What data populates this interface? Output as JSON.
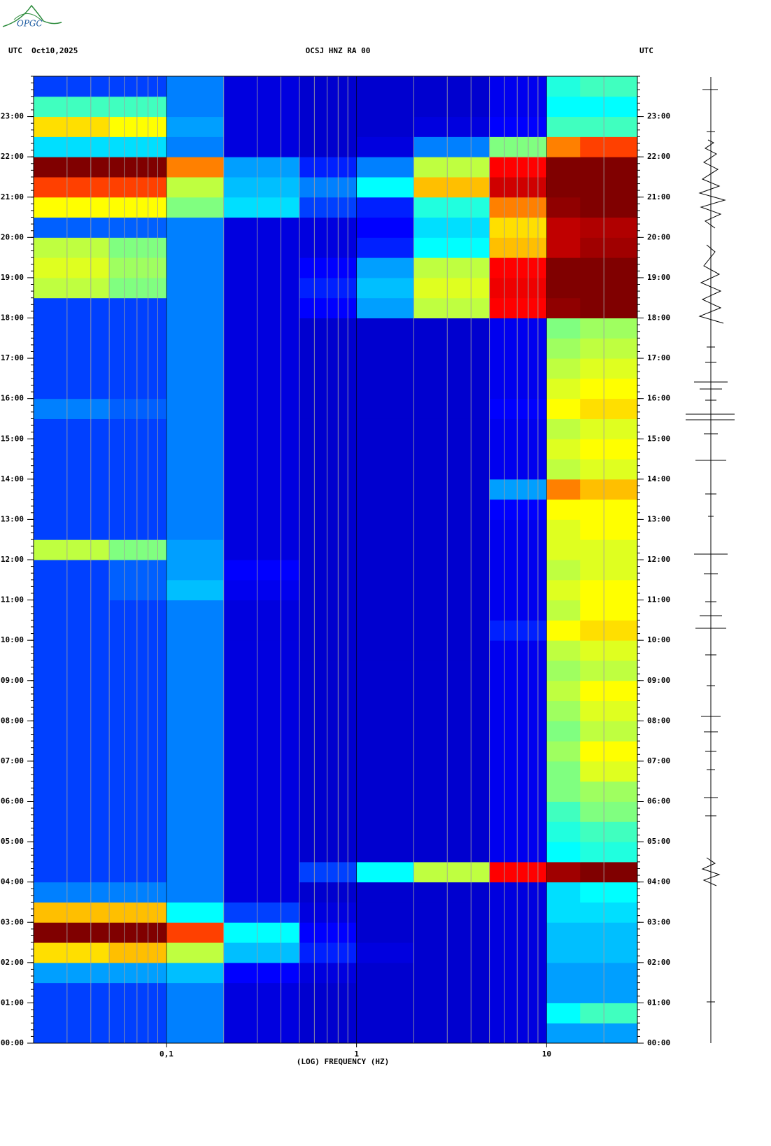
{
  "chart_data": {
    "type": "spectrogram",
    "logo": "OPGC",
    "header_left": "UTC  Oct10,2025",
    "title": "OCSJ HNZ RA 00",
    "header_right": "UTC",
    "xlabel": "(LOG) FREQUENCY (HZ)",
    "xscale": "log",
    "xlim": [
      0.02,
      30
    ],
    "xticks": [
      {
        "value": 0.1,
        "label": "0,1"
      },
      1,
      10
    ],
    "xgrid": [
      0.03,
      0.04,
      0.05,
      0.06,
      0.07,
      0.08,
      0.09,
      0.1,
      0.2,
      0.3,
      0.4,
      0.5,
      0.6,
      0.7,
      0.8,
      0.9,
      1,
      2,
      3,
      4,
      5,
      6,
      7,
      8,
      9,
      10,
      20
    ],
    "ylim": [
      0,
      24
    ],
    "yticks": [
      {
        "value": 0,
        "label": "00:00"
      },
      {
        "value": 1,
        "label": "01:00"
      },
      {
        "value": 2,
        "label": "02:00"
      },
      {
        "value": 3,
        "label": "03:00"
      },
      {
        "value": 4,
        "label": "04:00"
      },
      {
        "value": 5,
        "label": "05:00"
      },
      {
        "value": 6,
        "label": "06:00"
      },
      {
        "value": 7,
        "label": "07:00"
      },
      {
        "value": 8,
        "label": "08:00"
      },
      {
        "value": 9,
        "label": "09:00"
      },
      {
        "value": 10,
        "label": "10:00"
      },
      {
        "value": 11,
        "label": "11:00"
      },
      {
        "value": 12,
        "label": "12:00"
      },
      {
        "value": 13,
        "label": "13:00"
      },
      {
        "value": 14,
        "label": "14:00"
      },
      {
        "value": 15,
        "label": "15:00"
      },
      {
        "value": 16,
        "label": "16:00"
      },
      {
        "value": 17,
        "label": "17:00"
      },
      {
        "value": 18,
        "label": "18:00"
      },
      {
        "value": 19,
        "label": "19:00"
      },
      {
        "value": 20,
        "label": "20:00"
      },
      {
        "value": 21,
        "label": "21:00"
      },
      {
        "value": 22,
        "label": "22:00"
      },
      {
        "value": 23,
        "label": "23:00"
      }
    ],
    "xbins": [
      0.02,
      0.05,
      0.1,
      0.2,
      0.5,
      1,
      2,
      5,
      10,
      15,
      30
    ],
    "ybins_step": 0.5,
    "zlim": [
      0,
      4
    ],
    "colormap": [
      "#000080",
      "#0000ff",
      "#00ffff",
      "#ffff00",
      "#ff0000",
      "#800000"
    ],
    "z": [
      [
        1,
        1,
        1.2,
        0.6,
        0.5,
        0.5,
        0.5,
        0.6,
        1.3,
        1.3
      ],
      [
        1,
        1,
        1.2,
        0.6,
        0.5,
        0.5,
        0.5,
        0.6,
        1.6,
        1.8
      ],
      [
        1,
        1,
        1.2,
        0.6,
        0.5,
        0.5,
        0.5,
        0.6,
        1.3,
        1.3
      ],
      [
        1.3,
        1.3,
        1.4,
        0.8,
        0.6,
        0.5,
        0.5,
        0.6,
        1.3,
        1.3
      ],
      [
        2.5,
        2.6,
        2.2,
        1.4,
        0.9,
        0.6,
        0.5,
        0.6,
        1.4,
        1.4
      ],
      [
        4,
        4,
        3,
        1.6,
        0.8,
        0.5,
        0.5,
        0.6,
        1.4,
        1.4
      ],
      [
        2.6,
        2.6,
        1.6,
        1,
        0.6,
        0.5,
        0.5,
        0.6,
        1.5,
        1.5
      ],
      [
        1.2,
        1.2,
        1.2,
        0.6,
        0.5,
        0.5,
        0.5,
        0.6,
        1.5,
        1.6
      ],
      [
        1,
        1,
        1.2,
        0.6,
        1,
        1.6,
        2.2,
        3.2,
        3.8,
        4
      ],
      [
        1,
        1,
        1.2,
        0.6,
        0.5,
        0.5,
        0.5,
        0.7,
        1.6,
        1.7
      ],
      [
        1,
        1,
        1.2,
        0.6,
        0.5,
        0.5,
        0.5,
        0.7,
        1.7,
        1.8
      ],
      [
        1,
        1,
        1.2,
        0.6,
        0.5,
        0.5,
        0.5,
        0.7,
        1.8,
        2
      ],
      [
        1,
        1,
        1.2,
        0.6,
        0.5,
        0.5,
        0.5,
        0.7,
        2,
        2.1
      ],
      [
        1,
        1,
        1.2,
        0.6,
        0.5,
        0.5,
        0.5,
        0.7,
        2,
        2.3
      ],
      [
        1,
        1,
        1.2,
        0.6,
        0.5,
        0.5,
        0.5,
        0.7,
        2.1,
        2.4
      ],
      [
        1,
        1,
        1.2,
        0.6,
        0.5,
        0.5,
        0.5,
        0.7,
        2,
        2.2
      ],
      [
        1,
        1,
        1.2,
        0.6,
        0.5,
        0.5,
        0.5,
        0.7,
        2.1,
        2.3
      ],
      [
        1,
        1,
        1.2,
        0.6,
        0.5,
        0.5,
        0.5,
        0.7,
        2.2,
        2.4
      ],
      [
        1,
        1,
        1.2,
        0.6,
        0.5,
        0.5,
        0.5,
        0.7,
        2.1,
        2.2
      ],
      [
        1,
        1,
        1.2,
        0.6,
        0.5,
        0.5,
        0.5,
        0.7,
        2.2,
        2.3
      ],
      [
        1,
        1,
        1.2,
        0.6,
        0.5,
        0.5,
        0.5,
        0.9,
        2.4,
        2.5
      ],
      [
        1,
        1,
        1.2,
        0.6,
        0.5,
        0.5,
        0.5,
        0.7,
        2.2,
        2.4
      ],
      [
        1,
        1.1,
        1.4,
        0.7,
        0.5,
        0.5,
        0.5,
        0.7,
        2.3,
        2.4
      ],
      [
        1,
        1.1,
        1.3,
        0.8,
        0.5,
        0.5,
        0.5,
        0.7,
        2.2,
        2.3
      ],
      [
        2.2,
        2,
        1.3,
        0.6,
        0.5,
        0.5,
        0.5,
        0.7,
        2.3,
        2.3
      ],
      [
        1,
        1,
        1.2,
        0.6,
        0.5,
        0.5,
        0.5,
        0.7,
        2.3,
        2.4
      ],
      [
        1,
        1,
        1.2,
        0.6,
        0.5,
        0.5,
        0.5,
        0.8,
        2.4,
        2.4
      ],
      [
        1,
        1,
        1.2,
        0.6,
        0.5,
        0.5,
        0.5,
        1.3,
        2.8,
        2.6
      ],
      [
        1,
        1,
        1.2,
        0.6,
        0.5,
        0.5,
        0.5,
        0.7,
        2.2,
        2.3
      ],
      [
        1,
        1,
        1.2,
        0.6,
        0.5,
        0.5,
        0.5,
        0.7,
        2.3,
        2.4
      ],
      [
        1,
        1,
        1.2,
        0.6,
        0.5,
        0.5,
        0.5,
        0.7,
        2.2,
        2.3
      ],
      [
        1.2,
        1.1,
        1.2,
        0.6,
        0.5,
        0.5,
        0.5,
        0.8,
        2.4,
        2.5
      ],
      [
        1,
        1,
        1.2,
        0.6,
        0.5,
        0.5,
        0.5,
        0.7,
        2.3,
        2.4
      ],
      [
        1,
        1,
        1.2,
        0.6,
        0.5,
        0.5,
        0.5,
        0.7,
        2.2,
        2.3
      ],
      [
        1,
        1,
        1.2,
        0.6,
        0.5,
        0.5,
        0.5,
        0.7,
        2.1,
        2.2
      ],
      [
        1,
        1,
        1.2,
        0.6,
        0.5,
        0.5,
        0.5,
        0.7,
        2,
        2.1
      ],
      [
        1,
        1,
        1.2,
        0.6,
        0.8,
        1.3,
        2.2,
        3.2,
        3.9,
        4
      ],
      [
        2.2,
        2,
        1.2,
        0.6,
        0.9,
        1.4,
        2.3,
        3.3,
        4,
        4
      ],
      [
        2.3,
        2.1,
        1.2,
        0.6,
        0.8,
        1.3,
        2.2,
        3.2,
        4,
        4
      ],
      [
        2.2,
        2,
        1.2,
        0.6,
        0.6,
        0.9,
        1.6,
        2.6,
        3.6,
        3.8
      ],
      [
        1.1,
        1.1,
        1.2,
        0.6,
        0.6,
        0.8,
        1.5,
        2.5,
        3.6,
        3.7
      ],
      [
        2.4,
        2.4,
        2,
        1.5,
        1,
        0.9,
        1.7,
        2.8,
        3.9,
        4
      ],
      [
        3,
        3,
        2.2,
        1.4,
        1.2,
        1.6,
        2.6,
        3.5,
        4,
        4
      ],
      [
        4,
        4,
        2.8,
        1.3,
        0.9,
        1.2,
        2.2,
        3.2,
        4,
        4
      ],
      [
        1.5,
        1.5,
        1.2,
        0.6,
        0.5,
        0.6,
        1.2,
        2,
        2.8,
        3
      ],
      [
        2.5,
        2.4,
        1.3,
        0.6,
        0.5,
        0.5,
        0.6,
        0.8,
        1.8,
        1.8
      ],
      [
        1.8,
        1.8,
        1.2,
        0.6,
        0.5,
        0.5,
        0.5,
        0.7,
        1.6,
        1.6
      ],
      [
        1,
        1,
        1.2,
        0.6,
        0.5,
        0.5,
        0.5,
        0.7,
        1.7,
        1.8
      ]
    ]
  }
}
